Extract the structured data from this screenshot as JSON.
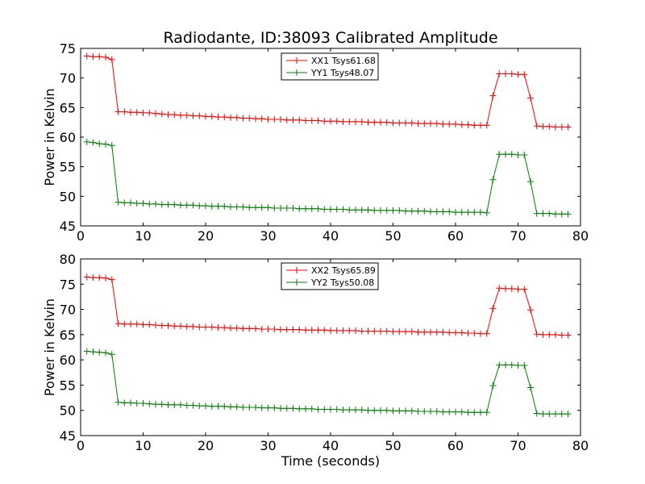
{
  "chart_data": [
    {
      "type": "line",
      "title": "Radiodante, ID:38093 Calibrated Amplitude",
      "xlabel": "",
      "ylabel": "Power in Kelvin",
      "xlim": [
        0,
        80
      ],
      "ylim": [
        45,
        75
      ],
      "xticks": [
        0,
        10,
        20,
        30,
        40,
        50,
        60,
        70,
        80
      ],
      "yticks": [
        45,
        50,
        55,
        60,
        65,
        70,
        75
      ],
      "grid": false,
      "legend": "top-center",
      "series": [
        {
          "name": "XX1 Tsys61.68",
          "color": "#ff0000",
          "x": [
            1,
            2,
            3,
            4,
            5,
            6,
            7,
            8,
            9,
            10,
            11,
            12,
            13,
            14,
            15,
            16,
            17,
            18,
            19,
            20,
            21,
            22,
            23,
            24,
            25,
            26,
            27,
            28,
            29,
            30,
            31,
            32,
            33,
            34,
            35,
            36,
            37,
            38,
            39,
            40,
            41,
            42,
            43,
            44,
            45,
            46,
            47,
            48,
            49,
            50,
            51,
            52,
            53,
            54,
            55,
            56,
            57,
            58,
            59,
            60,
            61,
            62,
            63,
            64,
            65,
            66,
            67,
            68,
            69,
            70,
            71,
            72,
            73,
            74,
            75,
            76,
            77,
            78
          ],
          "y": [
            73.7,
            73.6,
            73.6,
            73.5,
            73.1,
            64.3,
            64.3,
            64.2,
            64.2,
            64.1,
            64.1,
            64.0,
            63.9,
            63.8,
            63.8,
            63.7,
            63.7,
            63.6,
            63.6,
            63.5,
            63.5,
            63.4,
            63.4,
            63.3,
            63.3,
            63.2,
            63.2,
            63.1,
            63.1,
            63.0,
            63.0,
            63.0,
            62.9,
            62.9,
            62.9,
            62.8,
            62.8,
            62.8,
            62.7,
            62.7,
            62.7,
            62.6,
            62.6,
            62.6,
            62.6,
            62.5,
            62.5,
            62.5,
            62.5,
            62.4,
            62.4,
            62.4,
            62.4,
            62.3,
            62.3,
            62.3,
            62.3,
            62.2,
            62.2,
            62.2,
            62.1,
            62.1,
            62.0,
            62.0,
            62.0,
            67.0,
            70.7,
            70.7,
            70.7,
            70.6,
            70.6,
            66.6,
            61.9,
            61.8,
            61.8,
            61.7,
            61.7,
            61.7
          ]
        },
        {
          "name": "YY1 Tsys48.07",
          "color": "#008000",
          "x": [
            1,
            2,
            3,
            4,
            5,
            6,
            7,
            8,
            9,
            10,
            11,
            12,
            13,
            14,
            15,
            16,
            17,
            18,
            19,
            20,
            21,
            22,
            23,
            24,
            25,
            26,
            27,
            28,
            29,
            30,
            31,
            32,
            33,
            34,
            35,
            36,
            37,
            38,
            39,
            40,
            41,
            42,
            43,
            44,
            45,
            46,
            47,
            48,
            49,
            50,
            51,
            52,
            53,
            54,
            55,
            56,
            57,
            58,
            59,
            60,
            61,
            62,
            63,
            64,
            65,
            66,
            67,
            68,
            69,
            70,
            71,
            72,
            73,
            74,
            75,
            76,
            77,
            78
          ],
          "y": [
            59.2,
            59.1,
            58.9,
            58.8,
            58.6,
            49.0,
            48.9,
            48.9,
            48.8,
            48.8,
            48.7,
            48.7,
            48.6,
            48.6,
            48.6,
            48.5,
            48.5,
            48.5,
            48.4,
            48.4,
            48.3,
            48.3,
            48.3,
            48.2,
            48.2,
            48.2,
            48.1,
            48.1,
            48.1,
            48.1,
            48.0,
            48.0,
            48.0,
            48.0,
            47.9,
            47.9,
            47.9,
            47.9,
            47.8,
            47.8,
            47.8,
            47.8,
            47.7,
            47.7,
            47.7,
            47.7,
            47.6,
            47.6,
            47.6,
            47.6,
            47.6,
            47.5,
            47.5,
            47.5,
            47.5,
            47.4,
            47.4,
            47.4,
            47.4,
            47.3,
            47.3,
            47.3,
            47.3,
            47.3,
            47.2,
            52.8,
            57.1,
            57.1,
            57.1,
            57.0,
            57.0,
            52.5,
            47.1,
            47.1,
            47.1,
            47.0,
            47.0,
            47.0
          ]
        }
      ]
    },
    {
      "type": "line",
      "title": "",
      "xlabel": "Time (seconds)",
      "ylabel": "Power in Kelvin",
      "xlim": [
        0,
        80
      ],
      "ylim": [
        45,
        80
      ],
      "xticks": [
        0,
        10,
        20,
        30,
        40,
        50,
        60,
        70,
        80
      ],
      "yticks": [
        45,
        50,
        55,
        60,
        65,
        70,
        75,
        80
      ],
      "grid": false,
      "legend": "top-center",
      "series": [
        {
          "name": "XX2 Tsys65.89",
          "color": "#ff0000",
          "x": [
            1,
            2,
            3,
            4,
            5,
            6,
            7,
            8,
            9,
            10,
            11,
            12,
            13,
            14,
            15,
            16,
            17,
            18,
            19,
            20,
            21,
            22,
            23,
            24,
            25,
            26,
            27,
            28,
            29,
            30,
            31,
            32,
            33,
            34,
            35,
            36,
            37,
            38,
            39,
            40,
            41,
            42,
            43,
            44,
            45,
            46,
            47,
            48,
            49,
            50,
            51,
            52,
            53,
            54,
            55,
            56,
            57,
            58,
            59,
            60,
            61,
            62,
            63,
            64,
            65,
            66,
            67,
            68,
            69,
            70,
            71,
            72,
            73,
            74,
            75,
            76,
            77,
            78
          ],
          "y": [
            76.4,
            76.3,
            76.3,
            76.2,
            75.9,
            67.2,
            67.1,
            67.1,
            67.1,
            67.0,
            67.0,
            66.9,
            66.8,
            66.8,
            66.7,
            66.7,
            66.6,
            66.6,
            66.5,
            66.5,
            66.5,
            66.4,
            66.4,
            66.3,
            66.3,
            66.2,
            66.2,
            66.2,
            66.1,
            66.1,
            66.1,
            66.0,
            66.0,
            66.0,
            66.0,
            65.9,
            65.9,
            65.9,
            65.9,
            65.8,
            65.8,
            65.8,
            65.8,
            65.8,
            65.7,
            65.7,
            65.7,
            65.7,
            65.7,
            65.6,
            65.6,
            65.6,
            65.6,
            65.5,
            65.5,
            65.5,
            65.5,
            65.5,
            65.4,
            65.4,
            65.4,
            65.3,
            65.3,
            65.2,
            65.2,
            70.2,
            74.2,
            74.1,
            74.1,
            74.0,
            74.0,
            69.9,
            65.1,
            65.0,
            65.0,
            65.0,
            64.9,
            64.9
          ]
        },
        {
          "name": "YY2 Tsys50.08",
          "color": "#008000",
          "x": [
            1,
            2,
            3,
            4,
            5,
            6,
            7,
            8,
            9,
            10,
            11,
            12,
            13,
            14,
            15,
            16,
            17,
            18,
            19,
            20,
            21,
            22,
            23,
            24,
            25,
            26,
            27,
            28,
            29,
            30,
            31,
            32,
            33,
            34,
            35,
            36,
            37,
            38,
            39,
            40,
            41,
            42,
            43,
            44,
            45,
            46,
            47,
            48,
            49,
            50,
            51,
            52,
            53,
            54,
            55,
            56,
            57,
            58,
            59,
            60,
            61,
            62,
            63,
            64,
            65,
            66,
            67,
            68,
            69,
            70,
            71,
            72,
            73,
            74,
            75,
            76,
            77,
            78
          ],
          "y": [
            61.7,
            61.6,
            61.5,
            61.4,
            61.1,
            51.6,
            51.5,
            51.5,
            51.4,
            51.4,
            51.3,
            51.2,
            51.2,
            51.1,
            51.1,
            51.1,
            51.0,
            51.0,
            50.9,
            50.9,
            50.8,
            50.8,
            50.8,
            50.7,
            50.7,
            50.6,
            50.6,
            50.6,
            50.5,
            50.5,
            50.5,
            50.4,
            50.4,
            50.4,
            50.3,
            50.3,
            50.3,
            50.2,
            50.2,
            50.2,
            50.2,
            50.1,
            50.1,
            50.1,
            50.1,
            50.0,
            50.0,
            50.0,
            50.0,
            49.9,
            49.9,
            49.9,
            49.9,
            49.8,
            49.8,
            49.8,
            49.8,
            49.7,
            49.7,
            49.7,
            49.7,
            49.6,
            49.6,
            49.6,
            49.6,
            54.9,
            59.0,
            59.0,
            59.0,
            58.9,
            58.9,
            54.5,
            49.4,
            49.3,
            49.3,
            49.3,
            49.3,
            49.3
          ]
        }
      ]
    }
  ]
}
